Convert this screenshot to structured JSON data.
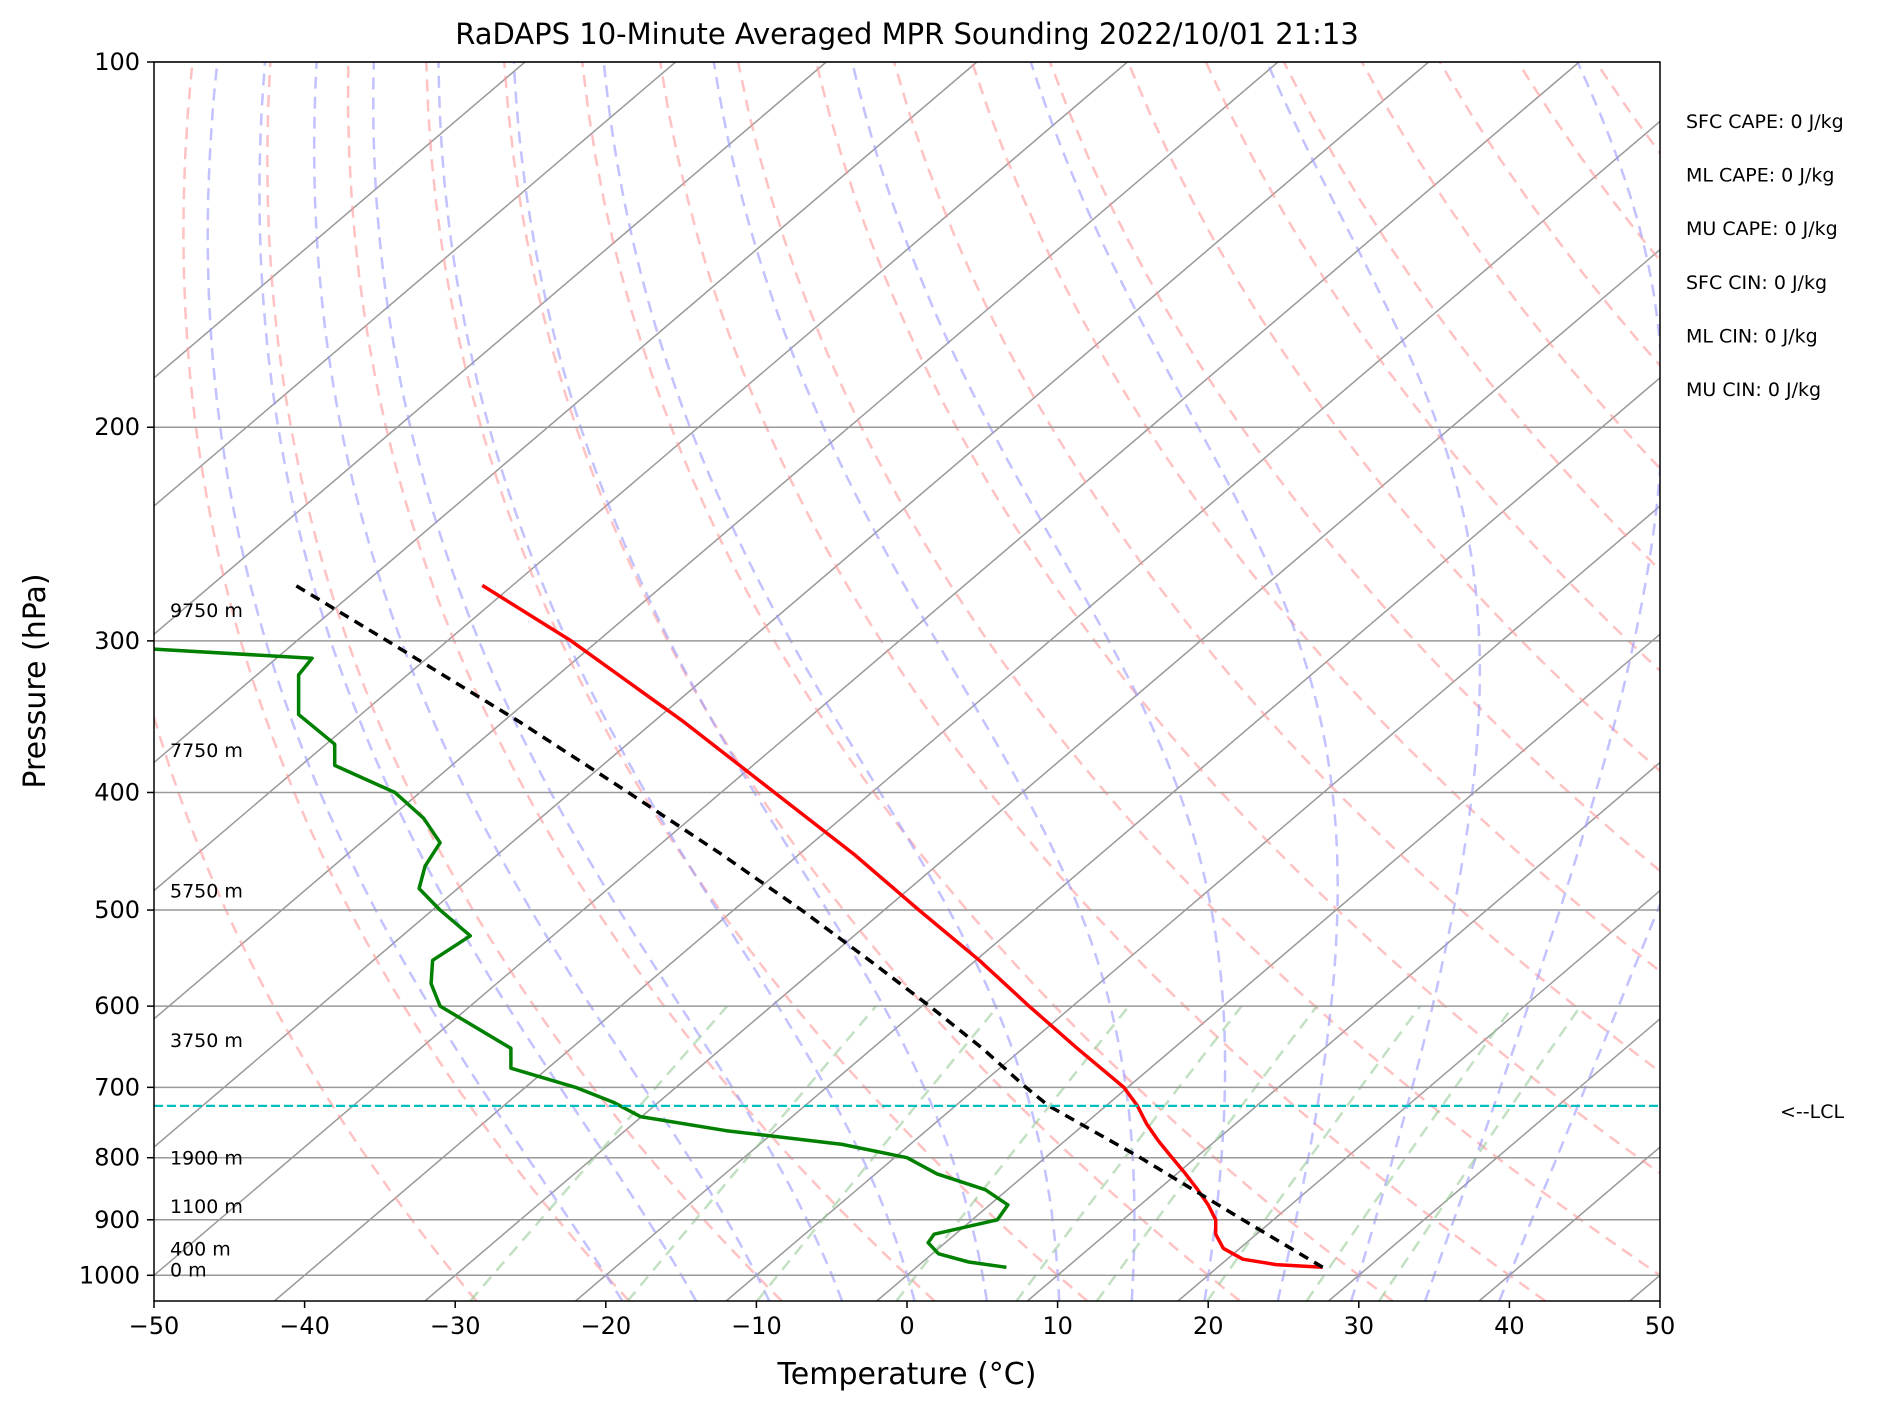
{
  "chart_data": {
    "type": "line",
    "title": "RaDAPS 10-Minute Averaged MPR Sounding 2022/10/01 21:13",
    "xlabel": "Temperature (°C)",
    "ylabel": "Pressure (hPa)",
    "x_scale": "linear",
    "y_scale": "log (inverted)",
    "xlim": [
      -50,
      50
    ],
    "ylim": [
      1050,
      100
    ],
    "x_ticks": [
      -50,
      -40,
      -30,
      -20,
      -10,
      0,
      10,
      20,
      30,
      40,
      50
    ],
    "x_tick_labels": [
      "−50",
      "−40",
      "−30",
      "−20",
      "−10",
      "0",
      "10",
      "20",
      "30",
      "40",
      "50"
    ],
    "y_ticks": [
      100,
      200,
      300,
      400,
      500,
      600,
      700,
      800,
      900,
      1000
    ],
    "y_tick_labels": [
      "100",
      "200",
      "300",
      "400",
      "500",
      "600",
      "700",
      "800",
      "900",
      "1000"
    ],
    "skew_t": true,
    "grid": true,
    "series": [
      {
        "color": "#ff0000",
        "points": [
          {
            "p": 985,
            "t": 27.6
          },
          {
            "p": 980,
            "t": 24.5
          },
          {
            "p": 970,
            "t": 22.3
          },
          {
            "p": 950,
            "t": 21.0
          },
          {
            "p": 925,
            "t": 20.5
          },
          {
            "p": 900,
            "t": 20.5
          },
          {
            "p": 875,
            "t": 20.0
          },
          {
            "p": 850,
            "t": 19.3
          },
          {
            "p": 825,
            "t": 18.5
          },
          {
            "p": 800,
            "t": 17.6
          },
          {
            "p": 775,
            "t": 16.7
          },
          {
            "p": 750,
            "t": 15.9
          },
          {
            "p": 725,
            "t": 15.3
          },
          {
            "p": 700,
            "t": 14.4
          },
          {
            "p": 650,
            "t": 11.3
          },
          {
            "p": 600,
            "t": 8.1
          },
          {
            "p": 550,
            "t": 4.8
          },
          {
            "p": 500,
            "t": 0.8
          },
          {
            "p": 450,
            "t": -3.5
          },
          {
            "p": 400,
            "t": -8.8
          },
          {
            "p": 350,
            "t": -14.8
          },
          {
            "p": 300,
            "t": -22.3
          },
          {
            "p": 270,
            "t": -28.2
          }
        ]
      },
      {
        "color": "#008000",
        "points": [
          {
            "p": 985,
            "t": 6.6
          },
          {
            "p": 975,
            "t": 4.1
          },
          {
            "p": 960,
            "t": 2.1
          },
          {
            "p": 940,
            "t": 1.4
          },
          {
            "p": 925,
            "t": 1.8
          },
          {
            "p": 900,
            "t": 6.0
          },
          {
            "p": 875,
            "t": 6.7
          },
          {
            "p": 850,
            "t": 5.2
          },
          {
            "p": 825,
            "t": 2.0
          },
          {
            "p": 800,
            "t": 0.0
          },
          {
            "p": 780,
            "t": -4.3
          },
          {
            "p": 760,
            "t": -12.0
          },
          {
            "p": 740,
            "t": -17.7
          },
          {
            "p": 720,
            "t": -19.5
          },
          {
            "p": 700,
            "t": -22.0
          },
          {
            "p": 675,
            "t": -26.3
          },
          {
            "p": 650,
            "t": -26.3
          },
          {
            "p": 600,
            "t": -31.0
          },
          {
            "p": 575,
            "t": -31.6
          },
          {
            "p": 550,
            "t": -31.5
          },
          {
            "p": 525,
            "t": -29.0
          },
          {
            "p": 500,
            "t": -31.0
          },
          {
            "p": 480,
            "t": -32.4
          },
          {
            "p": 460,
            "t": -32.0
          },
          {
            "p": 440,
            "t": -31.0
          },
          {
            "p": 420,
            "t": -32.1
          },
          {
            "p": 400,
            "t": -34.0
          },
          {
            "p": 380,
            "t": -38.0
          },
          {
            "p": 365,
            "t": -38.0
          },
          {
            "p": 345,
            "t": -40.4
          },
          {
            "p": 335,
            "t": -40.4
          },
          {
            "p": 320,
            "t": -40.4
          },
          {
            "p": 310,
            "t": -39.5
          },
          {
            "p": 300,
            "t": -59.6
          },
          {
            "p": 295,
            "t": -78.5
          }
        ]
      },
      {
        "color": "#000000",
        "dashed": true,
        "points": [
          {
            "p": 985,
            "t": 27.6
          },
          {
            "p": 900,
            "t": 22.3
          },
          {
            "p": 800,
            "t": 15.5
          },
          {
            "p": 725,
            "t": 9.4
          },
          {
            "p": 700,
            "t": 7.9
          },
          {
            "p": 650,
            "t": 5.0
          },
          {
            "p": 600,
            "t": 1.5
          },
          {
            "p": 550,
            "t": -2.5
          },
          {
            "p": 500,
            "t": -7.0
          },
          {
            "p": 450,
            "t": -12.3
          },
          {
            "p": 400,
            "t": -18.5
          },
          {
            "p": 350,
            "t": -25.7
          },
          {
            "p": 300,
            "t": -34.5
          },
          {
            "p": 270,
            "t": -40.6
          }
        ]
      }
    ],
    "lcl": {
      "p": 725,
      "label": "<--LCL",
      "color": "#00bfbf"
    },
    "height_labels": [
      {
        "p": 989,
        "label": "0 m"
      },
      {
        "p": 950,
        "label": "400 m"
      },
      {
        "p": 877,
        "label": "1100 m"
      },
      {
        "p": 800,
        "label": "1900 m"
      },
      {
        "p": 640,
        "label": "3750 m"
      },
      {
        "p": 482,
        "label": "5750 m"
      },
      {
        "p": 369,
        "label": "7750 m"
      },
      {
        "p": 283,
        "label": "9750 m"
      }
    ],
    "annotations": [
      "SFC CAPE: 0 J/kg",
      "ML CAPE: 0 J/kg",
      "MU CAPE: 0 J/kg",
      "SFC CIN: 0 J/kg",
      "ML CIN: 0 J/kg",
      "MU CIN: 0 J/kg"
    ],
    "background_lines": {
      "dry_adiabats_color": "#ff9999",
      "moist_adiabats_color": "#9999ff",
      "mixing_ratio_color": "#99cc99",
      "isotherm_color": "#999999"
    }
  }
}
